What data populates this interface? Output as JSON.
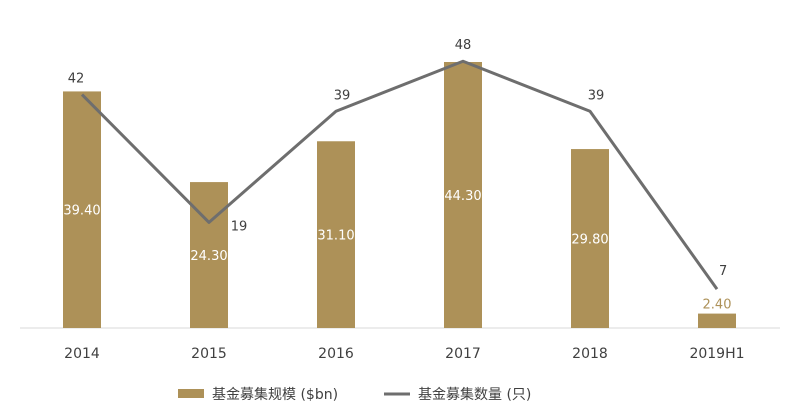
{
  "chart_data": {
    "type": "bar",
    "categories": [
      "2014",
      "2015",
      "2016",
      "2017",
      "2018",
      "2019H1"
    ],
    "series": [
      {
        "name": "基金募集规模 ($bn)",
        "type": "bar",
        "values": [
          39.4,
          24.3,
          31.1,
          44.3,
          29.8,
          2.4
        ],
        "labels": [
          "39.40",
          "24.30",
          "31.10",
          "44.30",
          "29.80",
          "2.40"
        ],
        "color": "#AD9158"
      },
      {
        "name": "基金募集数量 (只)",
        "type": "line",
        "values": [
          42,
          19,
          39,
          48,
          39,
          7
        ],
        "labels": [
          "42",
          "19",
          "39",
          "48",
          "39",
          "7"
        ],
        "color": "#6E6E6E"
      }
    ],
    "legend_position": "bottom",
    "grid": false,
    "bar_label_colors": {
      "inside": "#ffffff",
      "small": "#AD9158"
    }
  }
}
